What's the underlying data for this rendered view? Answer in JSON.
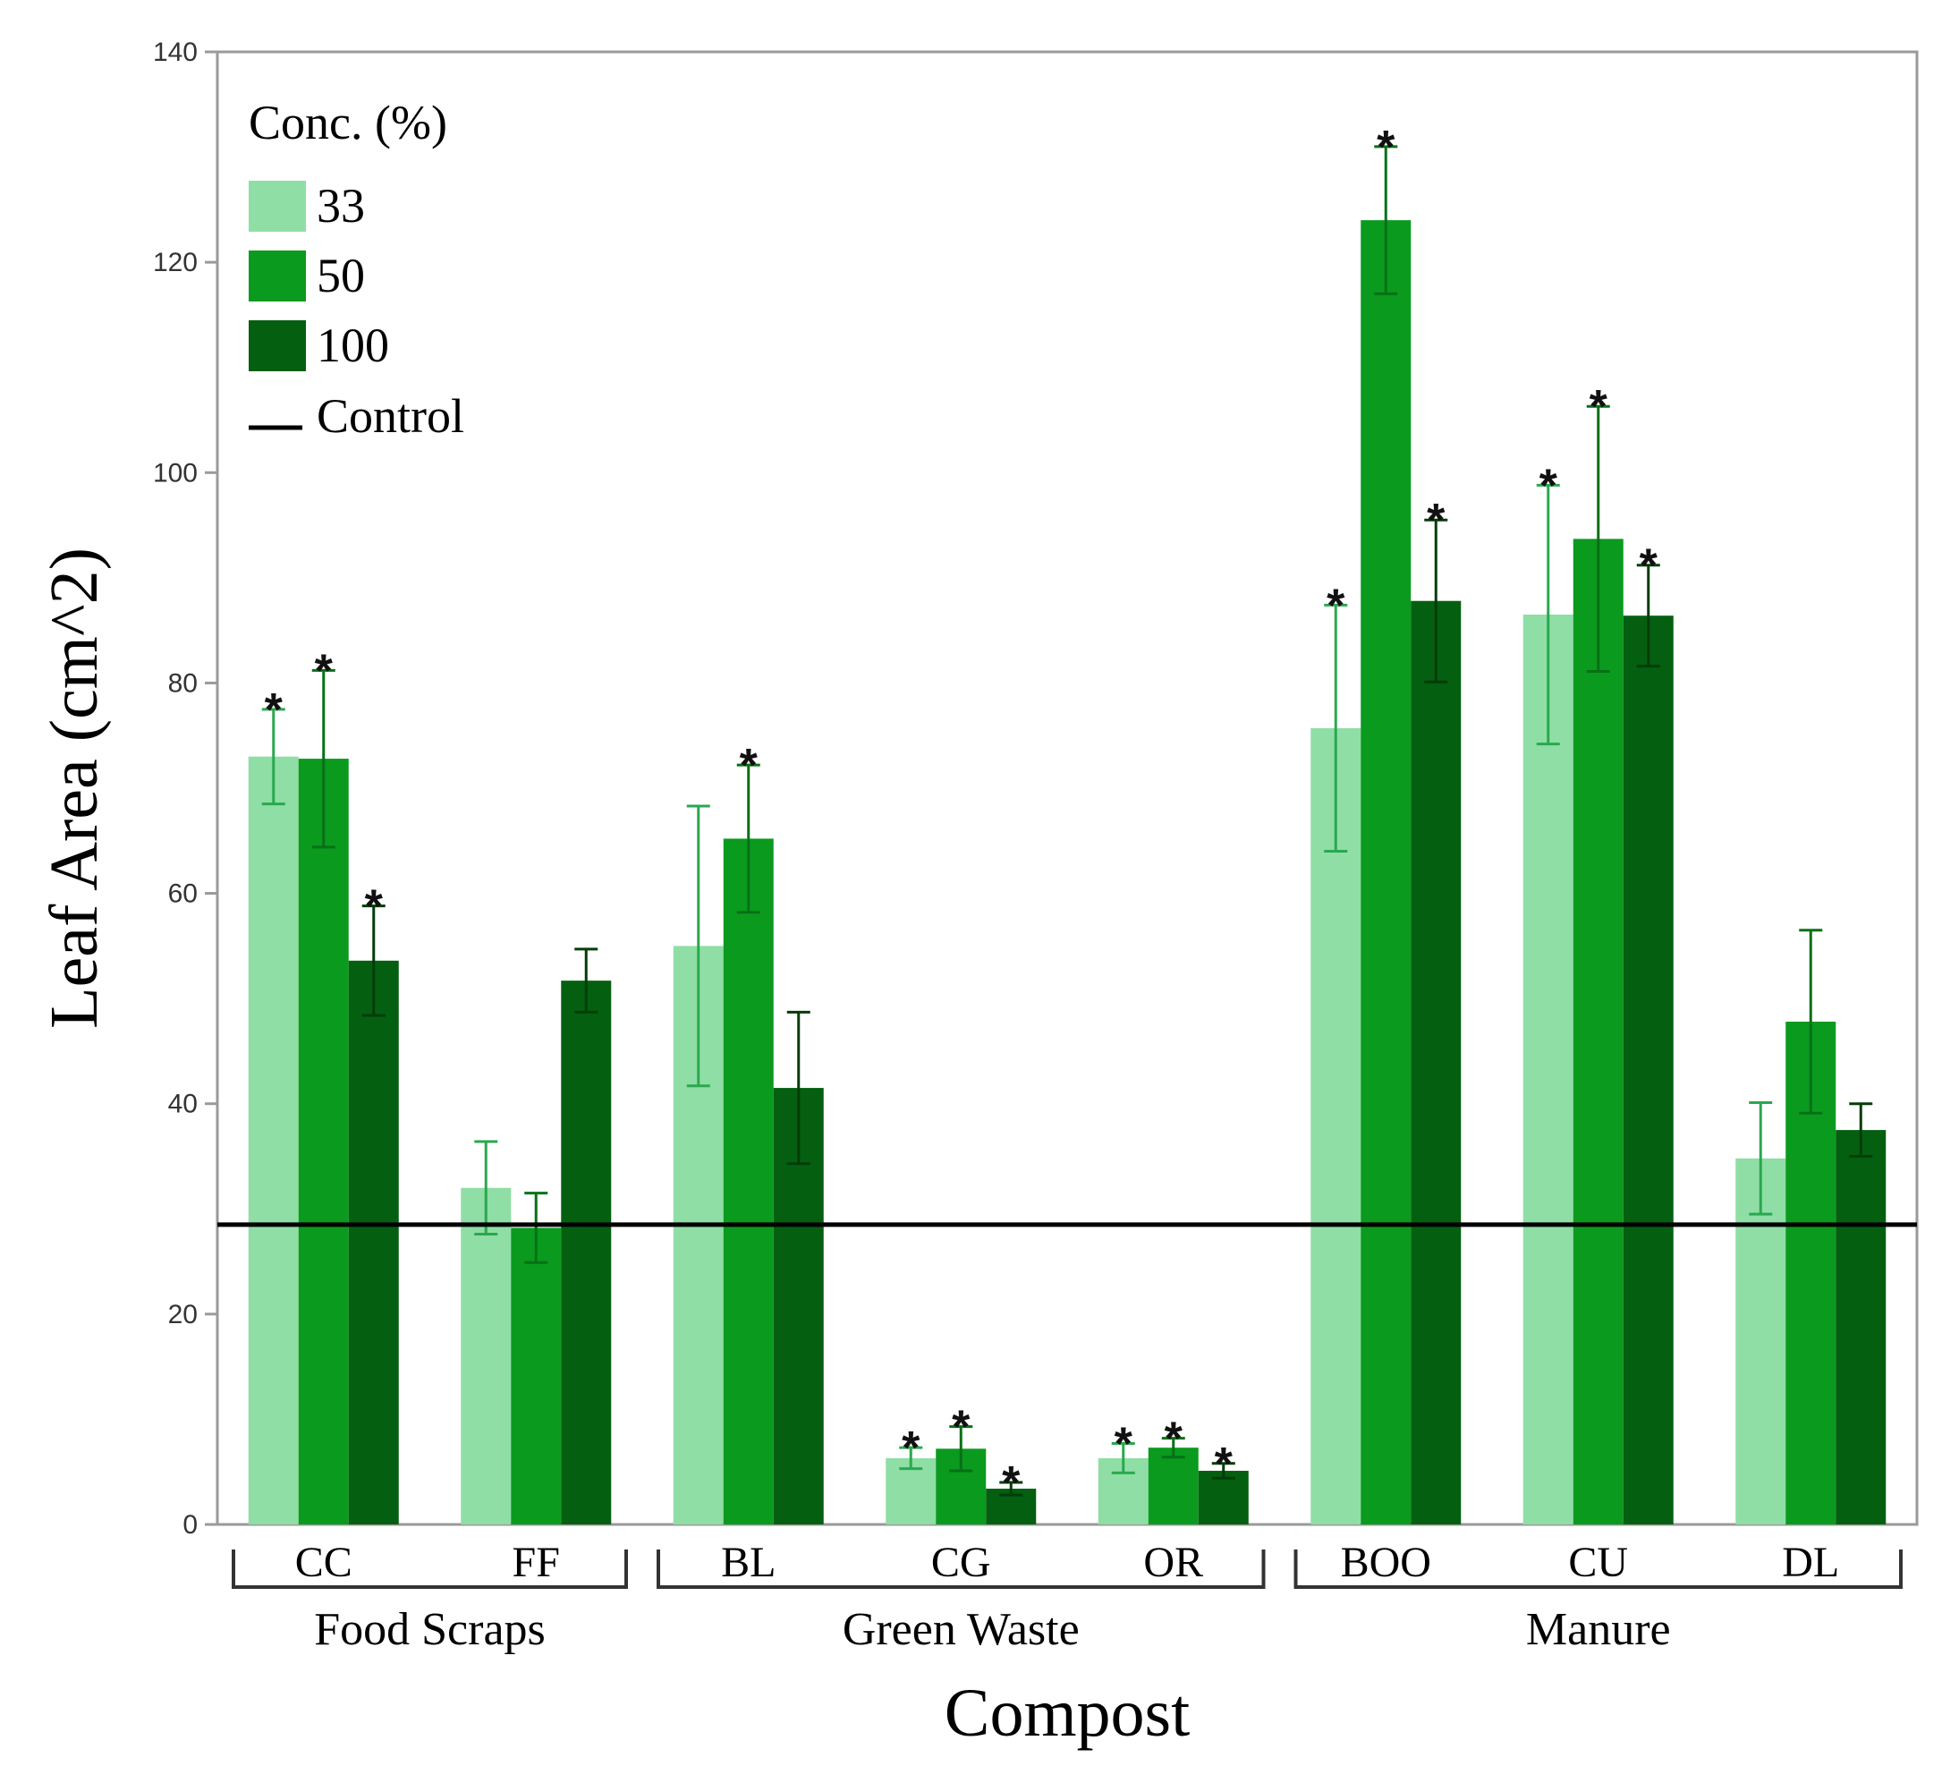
{
  "chart_data": {
    "type": "bar",
    "ylabel": "Leaf Area (cm^2)",
    "xlabel": "Compost",
    "ylim": [
      0,
      140
    ],
    "yticks": [
      "0",
      "20",
      "40",
      "60",
      "80",
      "100",
      "120",
      "140"
    ],
    "categories": [
      "CC",
      "FF",
      "BL",
      "CG",
      "OR",
      "BOO",
      "CU",
      "DL"
    ],
    "groups": [
      {
        "label": "Food Scraps",
        "categories": [
          "CC",
          "FF"
        ]
      },
      {
        "label": "Green Waste",
        "categories": [
          "BL",
          "CG",
          "OR"
        ]
      },
      {
        "label": "Manure",
        "categories": [
          "BOO",
          "CU",
          "DL"
        ]
      }
    ],
    "legend": {
      "title": "Conc. (%)",
      "control_label": "Control",
      "placement": "top-left"
    },
    "control_value": 28.5,
    "significance_marker": "*",
    "series": [
      {
        "name": "33",
        "color": "#8fdea6",
        "errcolor": "#2aa84f",
        "values": [
          73,
          32,
          55,
          6.3,
          6.3,
          75.7,
          86.5,
          34.8
        ],
        "errors": [
          4.5,
          4.4,
          13.3,
          1.0,
          1.4,
          11.7,
          12.3,
          5.3
        ],
        "significant": [
          true,
          false,
          false,
          true,
          true,
          true,
          true,
          false
        ]
      },
      {
        "name": "50",
        "color": "#0a9a1e",
        "errcolor": "#077016",
        "values": [
          72.8,
          28.2,
          65.2,
          7.2,
          7.3,
          124,
          93.7,
          47.8
        ],
        "errors": [
          8.4,
          3.3,
          7.0,
          2.1,
          0.9,
          7.0,
          12.6,
          8.7
        ],
        "significant": [
          true,
          false,
          true,
          true,
          true,
          true,
          true,
          false
        ]
      },
      {
        "name": "100",
        "color": "#055f10",
        "errcolor": "#033d09",
        "values": [
          53.6,
          51.7,
          41.5,
          3.4,
          5.1,
          87.8,
          86.4,
          37.5
        ],
        "errors": [
          5.2,
          3.0,
          7.2,
          0.6,
          0.7,
          7.7,
          4.8,
          2.5
        ],
        "significant": [
          true,
          false,
          false,
          true,
          true,
          true,
          true,
          false
        ]
      }
    ]
  }
}
